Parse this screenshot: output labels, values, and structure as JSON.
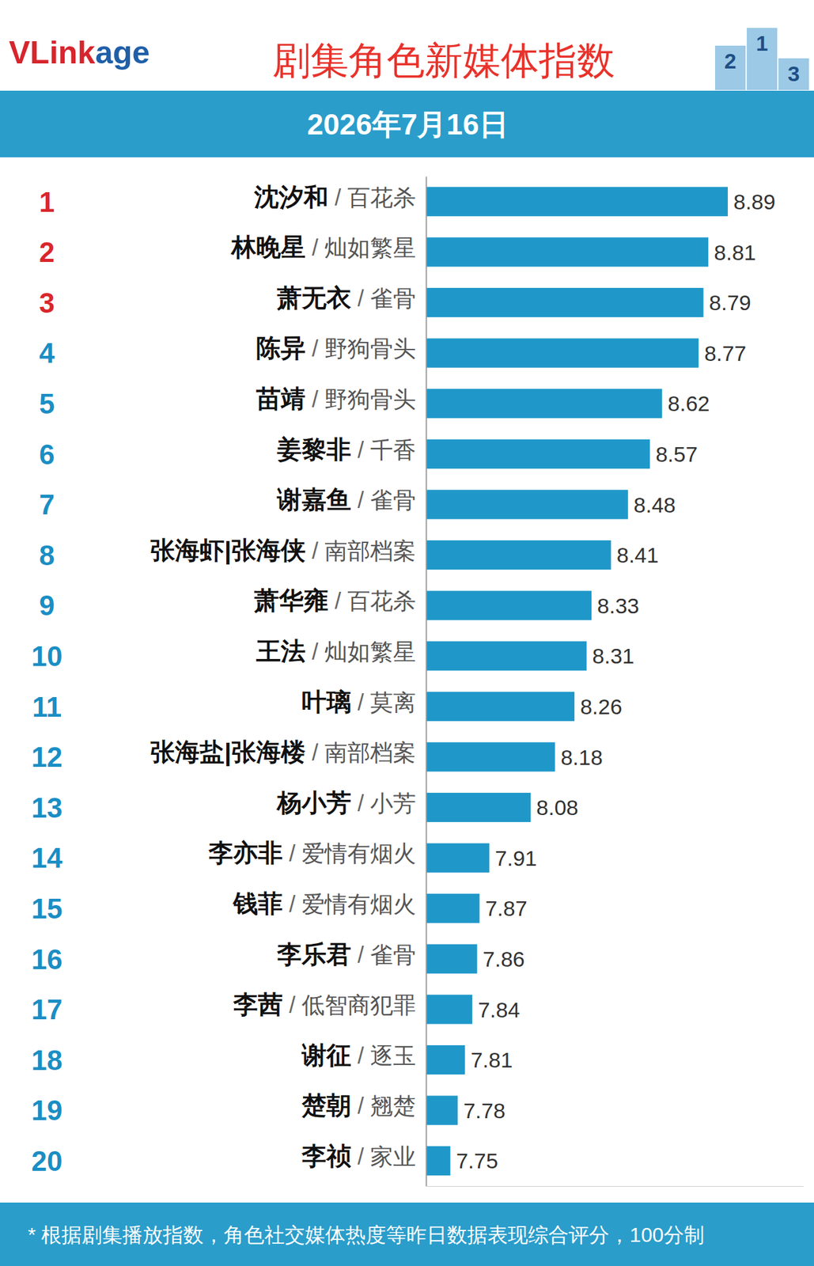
{
  "chart_data": {
    "type": "bar",
    "orientation": "horizontal",
    "logo": "VLinkage",
    "title": "剧集角色新媒体指数",
    "subtitle": "2026年7月16日",
    "podium": [
      "2",
      "1",
      "3"
    ],
    "ranks": [
      1,
      2,
      3,
      4,
      5,
      6,
      7,
      8,
      9,
      10,
      11,
      12,
      13,
      14,
      15,
      16,
      17,
      18,
      19,
      20
    ],
    "separator": "/",
    "categories": [
      "沈汐和",
      "林晚星",
      "萧无衣",
      "陈异",
      "苗靖",
      "姜黎非",
      "谢嘉鱼",
      "张海虾|张海侠",
      "萧华雍",
      "王法",
      "叶璃",
      "张海盐|张海楼",
      "杨小芳",
      "李亦非",
      "钱菲",
      "李乐君",
      "李茜",
      "谢征",
      "楚朝",
      "李祯"
    ],
    "shows": [
      "百花杀",
      "灿如繁星",
      "雀骨",
      "野狗骨头",
      "野狗骨头",
      "千香",
      "雀骨",
      "南部档案",
      "百花杀",
      "灿如繁星",
      "莫离",
      "南部档案",
      "小芳",
      "爱情有烟火",
      "爱情有烟火",
      "雀骨",
      "低智商犯罪",
      "逐玉",
      "翘楚",
      "家业"
    ],
    "values": [
      8.89,
      8.81,
      8.79,
      8.77,
      8.62,
      8.57,
      8.48,
      8.41,
      8.33,
      8.31,
      8.26,
      8.18,
      8.08,
      7.91,
      7.87,
      7.86,
      7.84,
      7.81,
      7.78,
      7.75
    ],
    "color": "#1f98c9",
    "xlim": [
      7.65,
      9.2
    ],
    "tick_labels": false,
    "data_labels": true,
    "note": "* 根据剧集播放指数，角色社交媒体热度等昨日数据表现综合评分，100分制"
  }
}
